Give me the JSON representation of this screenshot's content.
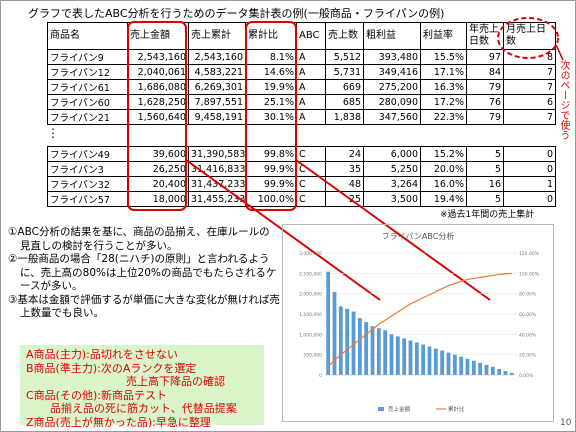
{
  "title": "グラフで表したABC分析を行うためのデータ集計表の例(一般商品・フライパンの例)",
  "table": {
    "header": [
      "商品名",
      "売上金額",
      "売上累計",
      "累計比",
      "ABC",
      "売上数",
      "粗利益",
      "利益率",
      "年売上日数",
      "月売上日数"
    ],
    "rows_top": [
      [
        "フライパン9",
        "2,543,160",
        "2,543,160",
        "8.1%",
        "A",
        "5,512",
        "393,480",
        "15.5%",
        "97",
        "8"
      ],
      [
        "フライパン12",
        "2,040,061",
        "4,583,221",
        "14.6%",
        "A",
        "5,731",
        "349,416",
        "17.1%",
        "84",
        "7"
      ],
      [
        "フライパン61",
        "1,686,080",
        "6,269,301",
        "19.9%",
        "A",
        "669",
        "275,200",
        "16.3%",
        "79",
        "7"
      ],
      [
        "フライパン60",
        "1,628,250",
        "7,897,551",
        "25.1%",
        "A",
        "685",
        "280,090",
        "17.2%",
        "76",
        "6"
      ],
      [
        "フライパン21",
        "1,560,640",
        "9,458,191",
        "30.1%",
        "A",
        "1,838",
        "347,560",
        "22.3%",
        "79",
        "7"
      ]
    ],
    "rows_bottom": [
      [
        "フライパン49",
        "39,600",
        "31,390,583",
        "99.8%",
        "C",
        "24",
        "6,000",
        "15.2%",
        "5",
        "0"
      ],
      [
        "フライパン3",
        "26,250",
        "31,416,833",
        "99.9%",
        "C",
        "35",
        "5,250",
        "20.0%",
        "5",
        "0"
      ],
      [
        "フライパン32",
        "20,400",
        "31,437,233",
        "99.9%",
        "C",
        "48",
        "3,264",
        "16.0%",
        "16",
        "1"
      ],
      [
        "フライパン57",
        "18,000",
        "31,455,233",
        "100.0%",
        "C",
        "25",
        "3,500",
        "19.4%",
        "5",
        "0"
      ]
    ],
    "note": "※過去1年間の売上集計"
  },
  "side_note": "次のページで使う",
  "text": [
    "①ABC分析の結果を基に、商品の品揃え、在庫ルールの見直しの検討を行うことが多い。",
    "②一般商品の場合「28(ニハチ)の原則」と言われるように、売上高の80%は上位20%の商品でもたらされるケースが多い。",
    "③基本は金額で評価するが単価に大きな変化が無ければ売上数量でも良い。"
  ],
  "box": [
    "A商品(主力):品切れをさせない",
    "B商品(準主力):次のAランクを選定",
    "売上高下降品の確認",
    "C商品(その他):新商品テスト",
    "品揃え品の死に筋カット、代替品提案",
    "Z商品(売上が無かった品):早急に整理"
  ],
  "page_number": "10",
  "chart_data": {
    "type": "bar",
    "title": "フライパンABC分析",
    "categories": [
      null,
      null,
      null,
      null,
      null,
      null,
      null,
      null,
      null,
      null,
      null,
      null,
      null,
      null,
      null,
      null,
      null,
      null,
      null,
      null,
      null,
      null,
      null,
      null,
      null,
      null,
      null,
      null,
      null,
      null
    ],
    "series": [
      {
        "name": "売上金額",
        "color": "#5b9bd5",
        "values": [
          2543160,
          2040061,
          1686080,
          1628250,
          1560640,
          1400000,
          1300000,
          1200000,
          1150000,
          1100000,
          1000000,
          950000,
          900000,
          850000,
          800000,
          750000,
          700000,
          650000,
          600000,
          550000,
          500000,
          450000,
          400000,
          350000,
          300000,
          250000,
          200000,
          150000,
          100000,
          50000
        ]
      },
      {
        "name": "累計比",
        "color": "#ed7d31",
        "axis": "y2",
        "type": "line",
        "values": [
          8.1,
          14.6,
          19.9,
          25.1,
          30.1,
          35,
          40,
          45,
          50,
          54,
          58,
          62,
          66,
          70,
          73,
          76,
          79,
          82,
          85,
          88,
          90,
          92,
          94,
          95,
          96,
          97,
          98,
          99,
          99.5,
          100
        ]
      }
    ],
    "ylim": [
      0,
      3000000
    ],
    "yticks": [
      0,
      {
        "value": 500000,
        "label": "500,000"
      },
      {
        "value": 1000000,
        "label": "1,000,000"
      },
      {
        "value": 1500000,
        "label": "1,500,000"
      },
      {
        "value": 2000000,
        "label": "2,000,000"
      },
      {
        "value": 2500000,
        "label": "2,500,000"
      },
      {
        "value": 3000000,
        "label": "3,000,000"
      }
    ],
    "y2lim": [
      0,
      120
    ],
    "y2ticks": [
      {
        "value": 0,
        "label": "0.00%"
      },
      {
        "value": 20,
        "label": "20.00%"
      },
      {
        "value": 40,
        "label": "40.00%"
      },
      {
        "value": 60,
        "label": "60.00%"
      },
      {
        "value": 80,
        "label": "80.00%"
      },
      {
        "value": 100,
        "label": "100.00%"
      },
      {
        "value": 120,
        "label": "120.00%"
      }
    ],
    "grid": true,
    "legend": "bottom"
  }
}
